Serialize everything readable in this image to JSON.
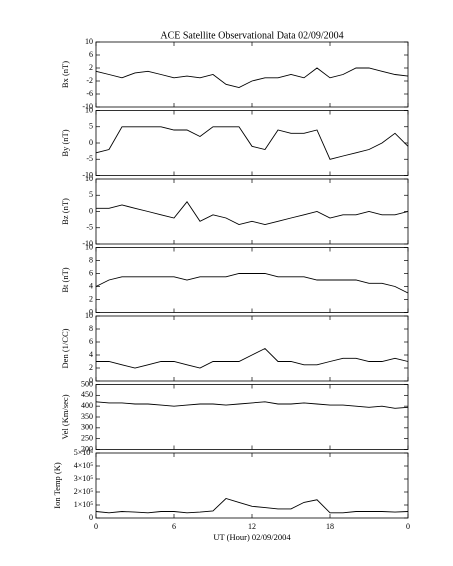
{
  "chart_data": {
    "type": "line",
    "title": "ACE Satellite Observational Data   02/09/2004",
    "xlabel": "UT (Hour)   02/09/2004",
    "color": "#000000",
    "x": [
      0,
      1,
      2,
      3,
      4,
      5,
      6,
      7,
      8,
      9,
      10,
      11,
      12,
      13,
      14,
      15,
      16,
      17,
      18,
      19,
      20,
      21,
      22,
      23,
      24
    ],
    "xlim": [
      0,
      24
    ],
    "xticks": [
      0,
      6,
      12,
      18,
      {
        "value": 24,
        "label": "0"
      }
    ],
    "panels": [
      {
        "ylabel": "Bx (nT)",
        "ylim": [
          -10,
          10
        ],
        "yticks": [
          -10,
          -6,
          -2,
          2,
          6,
          10
        ],
        "values": [
          1,
          0,
          -1,
          0.5,
          1,
          0,
          -1,
          -0.5,
          -1,
          0,
          -3,
          -4,
          -2,
          -1,
          -1,
          0,
          -1,
          2,
          -1,
          0,
          2,
          2,
          1,
          0,
          -0.5
        ]
      },
      {
        "ylabel": "By (nT)",
        "ylim": [
          -10,
          10
        ],
        "yticks": [
          -10,
          -5,
          0,
          5,
          10
        ],
        "values": [
          -3,
          -2,
          5,
          5,
          5,
          5,
          4,
          4,
          2,
          5,
          5,
          5,
          -1,
          -2,
          4,
          3,
          3,
          4,
          -5,
          -4,
          -3,
          -2,
          0,
          3,
          -1
        ]
      },
      {
        "ylabel": "Bz (nT)",
        "ylim": [
          -10,
          10
        ],
        "yticks": [
          -10,
          -5,
          0,
          5,
          10
        ],
        "values": [
          1,
          1,
          2,
          1,
          0,
          -1,
          -2,
          3,
          -3,
          -1,
          -2,
          -4,
          -3,
          -4,
          -3,
          -2,
          -1,
          0,
          -2,
          -1,
          -1,
          0,
          -1,
          -1,
          0
        ]
      },
      {
        "ylabel": "Bt (nT)",
        "ylim": [
          0,
          10
        ],
        "yticks": [
          0,
          2,
          4,
          6,
          8,
          10
        ],
        "values": [
          4,
          5,
          5.5,
          5.5,
          5.5,
          5.5,
          5.5,
          5,
          5.5,
          5.5,
          5.5,
          6,
          6,
          6,
          5.5,
          5.5,
          5.5,
          5,
          5,
          5,
          5,
          4.5,
          4.5,
          4,
          3
        ]
      },
      {
        "ylabel": "Den (1/CC)",
        "ylim": [
          0,
          10
        ],
        "yticks": [
          0,
          2,
          4,
          6,
          8,
          10
        ],
        "values": [
          3,
          3,
          2.5,
          2,
          2.5,
          3,
          3,
          2.5,
          2,
          3,
          3,
          3,
          4,
          5,
          3,
          3,
          2.5,
          2.5,
          3,
          3.5,
          3.5,
          3,
          3,
          3.5,
          3
        ]
      },
      {
        "ylabel": "Vel (Km/sec)",
        "ylim": [
          200,
          500
        ],
        "yticks": [
          200,
          250,
          300,
          350,
          400,
          450,
          500
        ],
        "values": [
          420,
          415,
          415,
          410,
          410,
          405,
          400,
          405,
          410,
          410,
          405,
          410,
          415,
          420,
          410,
          410,
          415,
          410,
          405,
          405,
          400,
          395,
          400,
          390,
          395
        ]
      },
      {
        "ylabel": "Ion Temp (K)",
        "ylim": [
          0,
          500000
        ],
        "yticks": [
          0,
          {
            "value": 100000,
            "label": "1×10⁵"
          },
          {
            "value": 200000,
            "label": "2×10⁵"
          },
          {
            "value": 300000,
            "label": "3×10⁵"
          },
          {
            "value": 400000,
            "label": "4×10⁵"
          },
          {
            "value": 500000,
            "label": "5×10⁵"
          }
        ],
        "values": [
          50000,
          40000,
          50000,
          45000,
          40000,
          50000,
          50000,
          40000,
          45000,
          55000,
          150000,
          120000,
          90000,
          80000,
          70000,
          70000,
          120000,
          140000,
          40000,
          40000,
          50000,
          50000,
          50000,
          45000,
          50000
        ]
      }
    ]
  }
}
